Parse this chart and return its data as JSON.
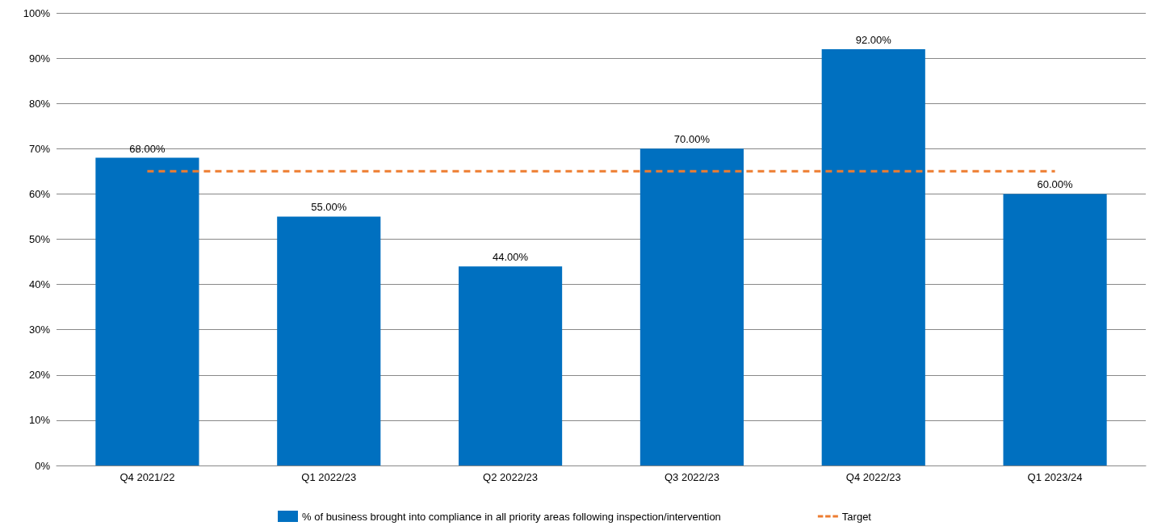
{
  "chart_data": {
    "type": "bar",
    "categories": [
      "Q4 2021/22",
      "Q1 2022/23",
      "Q2 2022/23",
      "Q3 2022/23",
      "Q4 2022/23",
      "Q1 2023/24"
    ],
    "series": [
      {
        "name": "% of business brought into compliance in all priority areas following inspection/intervention",
        "color": "#0070c0",
        "values": [
          68,
          55,
          44,
          70,
          92,
          60
        ],
        "value_labels": [
          "68.00%",
          "55.00%",
          "44.00%",
          "70.00%",
          "92.00%",
          "60.00%"
        ]
      },
      {
        "name": "Target",
        "type": "line",
        "color": "#ed7d31",
        "values": [
          65,
          65,
          65,
          65,
          65,
          65
        ],
        "line_style": "dashed",
        "marker": "none"
      }
    ],
    "ylim": [
      0,
      100
    ],
    "yticks": [
      {
        "value": 0,
        "label": "0%"
      },
      {
        "value": 10,
        "label": "10%"
      },
      {
        "value": 20,
        "label": "20%"
      },
      {
        "value": 30,
        "label": "30%"
      },
      {
        "value": 40,
        "label": "40%"
      },
      {
        "value": 50,
        "label": "50%"
      },
      {
        "value": 60,
        "label": "60%"
      },
      {
        "value": 70,
        "label": "70%"
      },
      {
        "value": 80,
        "label": "80%"
      },
      {
        "value": 90,
        "label": "90%"
      },
      {
        "value": 100,
        "label": "100%"
      }
    ],
    "grid": "y",
    "legend": "bottom"
  }
}
